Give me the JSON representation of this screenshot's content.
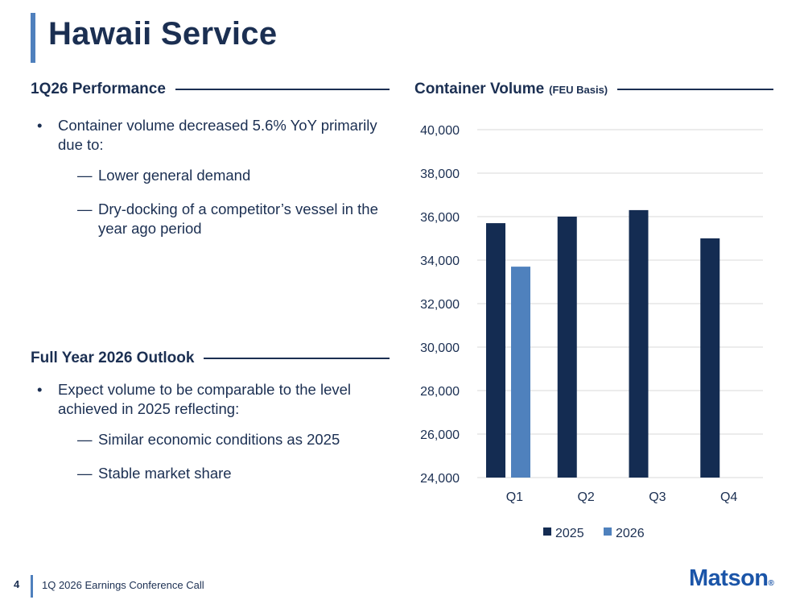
{
  "slide": {
    "title": "Hawaii Service"
  },
  "performance": {
    "heading": "1Q26 Performance",
    "bullet": "Container volume decreased 5.6% YoY primarily due to:",
    "sub_bullets": [
      "Lower general demand",
      "Dry-docking of a competitor’s vessel in the year ago period"
    ]
  },
  "outlook": {
    "heading": "Full Year 2026 Outlook",
    "bullet": "Expect volume to be comparable to the level achieved in 2025 reflecting:",
    "sub_bullets": [
      "Similar economic conditions as 2025",
      "Stable market share"
    ]
  },
  "chart_header": {
    "title": "Container Volume",
    "subtitle": "(FEU Basis)"
  },
  "chart_data": {
    "type": "bar",
    "title": "Container Volume (FEU Basis)",
    "categories": [
      "Q1",
      "Q2",
      "Q3",
      "Q4"
    ],
    "series": [
      {
        "name": "2025",
        "values": [
          35700,
          36000,
          36300,
          35000
        ],
        "color": "#142c52"
      },
      {
        "name": "2026",
        "values": [
          33700,
          null,
          null,
          null
        ],
        "color": "#4f81bd"
      }
    ],
    "ylim": [
      24000,
      40000
    ],
    "yticks": [
      "24,000",
      "26,000",
      "28,000",
      "30,000",
      "32,000",
      "34,000",
      "36,000",
      "38,000",
      "40,000"
    ],
    "ytick_values": [
      24000,
      26000,
      28000,
      30000,
      32000,
      34000,
      36000,
      38000,
      40000
    ],
    "grid": true,
    "legend_position": "bottom",
    "xlabel": "",
    "ylabel": ""
  },
  "footer": {
    "page_number": "4",
    "text": "1Q 2026 Earnings Conference Call",
    "logo": "Matson",
    "logo_mark": "®"
  }
}
